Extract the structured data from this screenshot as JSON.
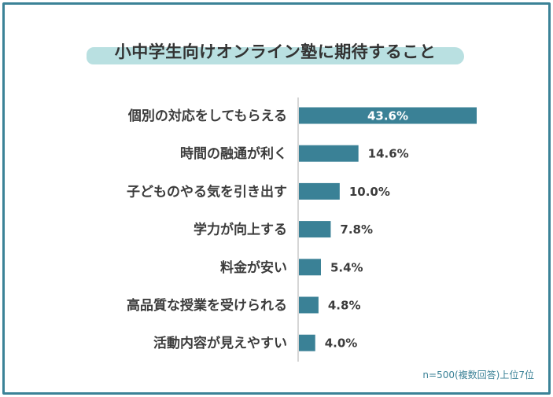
{
  "title": "小中学生向けオンライン塾に期待すること",
  "note": "n=500(複数回答)上位7位",
  "colors": {
    "bar": "#3a8196",
    "frame": "#3b8297",
    "title_highlight": "#b9e0e1",
    "axis": "#c8c8c8",
    "label_text": "#3c3c3c",
    "value_inside": "#ffffff",
    "value_outside": "#3c3c3c"
  },
  "chart_data": {
    "type": "bar",
    "orientation": "horizontal",
    "title": "小中学生向けオンライン塾に期待すること",
    "categories": [
      "個別の対応をしてもらえる",
      "時間の融通が利く",
      "子どものやる気を引き出す",
      "学力が向上する",
      "料金が安い",
      "高品質な授業を受けられる",
      "活動内容が見えやすい"
    ],
    "values": [
      43.6,
      14.6,
      10.0,
      7.8,
      5.4,
      4.8,
      4.0
    ],
    "value_labels": [
      "43.6%",
      "14.6%",
      "10.0%",
      "7.8%",
      "5.4%",
      "4.8%",
      "4.0%"
    ],
    "unit": "%",
    "xlim": [
      0,
      43.6
    ],
    "grid": false
  }
}
